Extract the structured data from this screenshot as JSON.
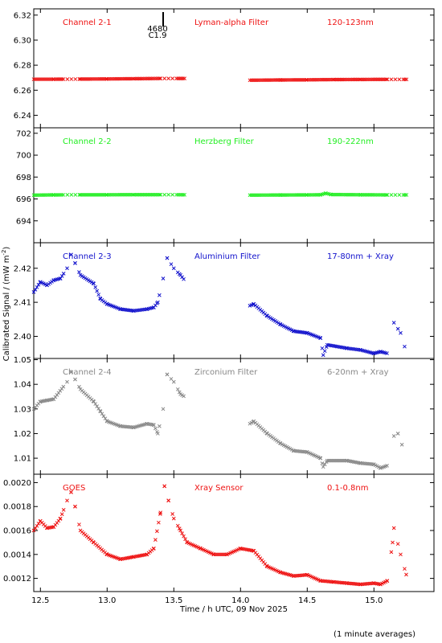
{
  "footnote": "(1 minute averages)",
  "colors": {
    "red": "#ee1111",
    "green": "#22ee22",
    "blue": "#1111cc",
    "gray": "#888888",
    "axis": "#000000"
  },
  "chart_data": {
    "type": "scatter",
    "xlabel": "Time / h UTC, 09 Nov 2025",
    "ylabel": "Calibrated Signal / (mW m",
    "ylabel_sup": "-2",
    "ylabel_close": ")",
    "xlim": [
      12.45,
      15.45
    ],
    "xticks": [
      "12.5",
      "13.0",
      "13.5",
      "14.0",
      "14.5",
      "15.0"
    ],
    "event_marker": {
      "x": 13.42,
      "label1": "4680",
      "label2": "C1.9"
    },
    "panels": [
      {
        "name": "Channel 2-1",
        "filter": "Lyman-alpha Filter",
        "band": "120-123nm",
        "color": "#ee1111",
        "ylim": [
          6.23,
          6.325
        ],
        "yticks": [
          "6.24",
          "6.26",
          "6.28",
          "6.30",
          "6.32"
        ],
        "points": [
          [
            12.45,
            6.2688
          ],
          [
            12.6,
            6.2688
          ],
          [
            12.8,
            6.2689
          ],
          [
            13.0,
            6.269
          ],
          [
            13.2,
            6.2692
          ],
          [
            13.4,
            6.2694
          ],
          [
            13.58,
            6.2694
          ],
          [
            13.59,
            null
          ],
          [
            14.07,
            6.268
          ],
          [
            14.3,
            6.2682
          ],
          [
            14.5,
            6.2683
          ],
          [
            14.7,
            6.2685
          ],
          [
            14.9,
            6.2686
          ],
          [
            15.1,
            6.2687
          ],
          [
            15.25,
            6.2687
          ]
        ]
      },
      {
        "name": "Channel 2-2",
        "filter": "Herzberg Filter",
        "band": "190-222nm",
        "color": "#22ee22",
        "ylim": [
          692.0,
          702.5
        ],
        "yticks": [
          "694",
          "696",
          "698",
          "700",
          "702"
        ],
        "points": [
          [
            12.45,
            696.35
          ],
          [
            12.6,
            696.37
          ],
          [
            12.8,
            696.38
          ],
          [
            13.0,
            696.38
          ],
          [
            13.2,
            696.39
          ],
          [
            13.4,
            696.39
          ],
          [
            13.58,
            696.38
          ],
          [
            13.59,
            null
          ],
          [
            14.07,
            696.35
          ],
          [
            14.3,
            696.36
          ],
          [
            14.5,
            696.37
          ],
          [
            14.6,
            696.38
          ],
          [
            14.64,
            696.52
          ],
          [
            14.68,
            696.4
          ],
          [
            14.9,
            696.38
          ],
          [
            15.1,
            696.37
          ],
          [
            15.25,
            696.37
          ]
        ]
      },
      {
        "name": "Channel 2-3",
        "filter": "Aluminium Filter",
        "band": "17-80nm + Xray",
        "color": "#1111cc",
        "ylim": [
          2.3935,
          2.4275
        ],
        "yticks": [
          "2.40",
          "2.41",
          "2.42"
        ],
        "points": [
          [
            12.45,
            2.413
          ],
          [
            12.5,
            2.416
          ],
          [
            12.55,
            2.415
          ],
          [
            12.6,
            2.4165
          ],
          [
            12.65,
            2.417
          ],
          [
            12.7,
            2.42
          ],
          [
            12.73,
            2.424
          ],
          [
            12.76,
            2.4215
          ],
          [
            12.8,
            2.418
          ],
          [
            12.9,
            2.4155
          ],
          [
            12.95,
            2.411
          ],
          [
            13.0,
            2.4095
          ],
          [
            13.1,
            2.408
          ],
          [
            13.2,
            2.4075
          ],
          [
            13.3,
            2.408
          ],
          [
            13.35,
            2.4085
          ],
          [
            13.38,
            2.41
          ],
          [
            13.42,
            2.417
          ],
          [
            13.45,
            2.423
          ],
          [
            13.5,
            2.42
          ],
          [
            13.55,
            2.418
          ],
          [
            13.58,
            2.4165
          ],
          [
            13.59,
            null
          ],
          [
            14.07,
            2.409
          ],
          [
            14.1,
            2.4095
          ],
          [
            14.2,
            2.406
          ],
          [
            14.3,
            2.4035
          ],
          [
            14.4,
            2.4015
          ],
          [
            14.5,
            2.401
          ],
          [
            14.6,
            2.3995
          ],
          [
            14.62,
            2.3945
          ],
          [
            14.65,
            2.3975
          ],
          [
            14.8,
            2.3965
          ],
          [
            14.9,
            2.396
          ],
          [
            15.0,
            2.395
          ],
          [
            15.05,
            2.3955
          ],
          [
            15.1,
            2.395
          ],
          [
            15.14,
            null
          ],
          [
            15.15,
            2.404
          ],
          [
            15.2,
            2.401
          ],
          [
            15.23,
            2.397
          ]
        ]
      },
      {
        "name": "Channel 2-4",
        "filter": "Zirconium Filter",
        "band": "6-20nm + Xray",
        "color": "#888888",
        "ylim": [
          1.0035,
          1.0505
        ],
        "yticks": [
          "1.01",
          "1.02",
          "1.03",
          "1.04",
          "1.05"
        ],
        "points": [
          [
            12.45,
            1.03
          ],
          [
            12.5,
            1.033
          ],
          [
            12.55,
            1.0335
          ],
          [
            12.6,
            1.034
          ],
          [
            12.7,
            1.041
          ],
          [
            12.73,
            1.045
          ],
          [
            12.76,
            1.042
          ],
          [
            12.8,
            1.038
          ],
          [
            12.9,
            1.033
          ],
          [
            12.95,
            1.029
          ],
          [
            13.0,
            1.025
          ],
          [
            13.1,
            1.023
          ],
          [
            13.2,
            1.0225
          ],
          [
            13.3,
            1.024
          ],
          [
            13.35,
            1.0235
          ],
          [
            13.38,
            1.02
          ],
          [
            13.42,
            1.03
          ],
          [
            13.45,
            1.044
          ],
          [
            13.5,
            1.041
          ],
          [
            13.55,
            1.036
          ],
          [
            13.58,
            1.035
          ],
          [
            13.59,
            null
          ],
          [
            14.07,
            1.024
          ],
          [
            14.1,
            1.025
          ],
          [
            14.2,
            1.02
          ],
          [
            14.3,
            1.016
          ],
          [
            14.4,
            1.013
          ],
          [
            14.5,
            1.0125
          ],
          [
            14.6,
            1.01
          ],
          [
            14.62,
            1.0065
          ],
          [
            14.65,
            1.009
          ],
          [
            14.8,
            1.009
          ],
          [
            14.9,
            1.008
          ],
          [
            15.0,
            1.0075
          ],
          [
            15.05,
            1.006
          ],
          [
            15.1,
            1.007
          ],
          [
            15.14,
            null
          ],
          [
            15.15,
            1.019
          ],
          [
            15.18,
            1.02
          ],
          [
            15.22,
            1.014
          ]
        ]
      },
      {
        "name": "GOES",
        "filter": "Xray Sensor",
        "band": "0.1-0.8nm",
        "color": "#ee1111",
        "ylim": [
          0.00109,
          0.00207
        ],
        "yticks": [
          "0.0012",
          "0.0014",
          "0.0016",
          "0.0018",
          "0.0020"
        ],
        "points": [
          [
            12.45,
            0.0016
          ],
          [
            12.5,
            0.00168
          ],
          [
            12.55,
            0.00162
          ],
          [
            12.6,
            0.00163
          ],
          [
            12.65,
            0.0017
          ],
          [
            12.7,
            0.00185
          ],
          [
            12.73,
            0.00192
          ],
          [
            12.76,
            0.0018
          ],
          [
            12.8,
            0.0016
          ],
          [
            12.9,
            0.0015
          ],
          [
            13.0,
            0.0014
          ],
          [
            13.1,
            0.00136
          ],
          [
            13.2,
            0.00138
          ],
          [
            13.3,
            0.0014
          ],
          [
            13.35,
            0.00145
          ],
          [
            13.4,
            0.00175
          ],
          [
            13.43,
            0.00197
          ],
          [
            13.46,
            0.00185
          ],
          [
            13.5,
            0.0017
          ],
          [
            13.55,
            0.0016
          ],
          [
            13.6,
            0.0015
          ],
          [
            13.7,
            0.00145
          ],
          [
            13.8,
            0.0014
          ],
          [
            13.9,
            0.0014
          ],
          [
            14.0,
            0.00145
          ],
          [
            14.1,
            0.00143
          ],
          [
            14.2,
            0.0013
          ],
          [
            14.3,
            0.00125
          ],
          [
            14.4,
            0.00122
          ],
          [
            14.5,
            0.00123
          ],
          [
            14.6,
            0.00118
          ],
          [
            14.7,
            0.00117
          ],
          [
            14.8,
            0.00116
          ],
          [
            14.9,
            0.00115
          ],
          [
            15.0,
            0.00116
          ],
          [
            15.05,
            0.00115
          ],
          [
            15.1,
            0.00118
          ],
          [
            15.14,
            0.0015
          ],
          [
            15.15,
            0.00162
          ],
          [
            15.2,
            0.0014
          ],
          [
            15.25,
            0.0012
          ]
        ]
      }
    ]
  }
}
